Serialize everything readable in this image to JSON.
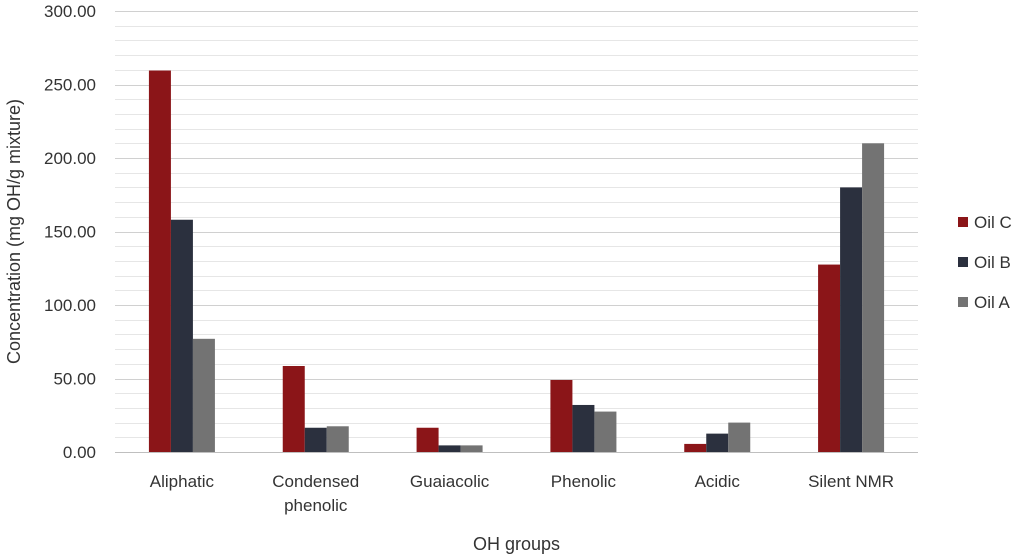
{
  "chart_data": {
    "type": "bar",
    "categories": [
      [
        "Aliphatic"
      ],
      [
        "Condensed",
        "phenolic"
      ],
      [
        "Guaiacolic"
      ],
      [
        "Phenolic"
      ],
      [
        "Acidic"
      ],
      [
        "Silent NMR"
      ]
    ],
    "series": [
      {
        "name": "Oil C",
        "color": "#8B1518",
        "values": [
          259.5,
          58.5,
          16.5,
          49.0,
          5.5,
          127.5
        ]
      },
      {
        "name": "Oil B",
        "color": "#2B303E",
        "values": [
          158.0,
          16.5,
          4.5,
          32.0,
          12.5,
          180.0
        ]
      },
      {
        "name": "Oil A",
        "color": "#737373",
        "values": [
          77.0,
          17.5,
          4.5,
          27.5,
          20.0,
          210.0
        ]
      }
    ],
    "xlabel": "OH groups",
    "ylabel": "Concentration (mg OH/g mixture)",
    "ylim": [
      0,
      300
    ],
    "yticks": [
      "0.00",
      "50.00",
      "100.00",
      "150.00",
      "200.00",
      "250.00",
      "300.00"
    ],
    "minor_gridlines_step": 10,
    "grid": true,
    "legend_position": "right"
  }
}
